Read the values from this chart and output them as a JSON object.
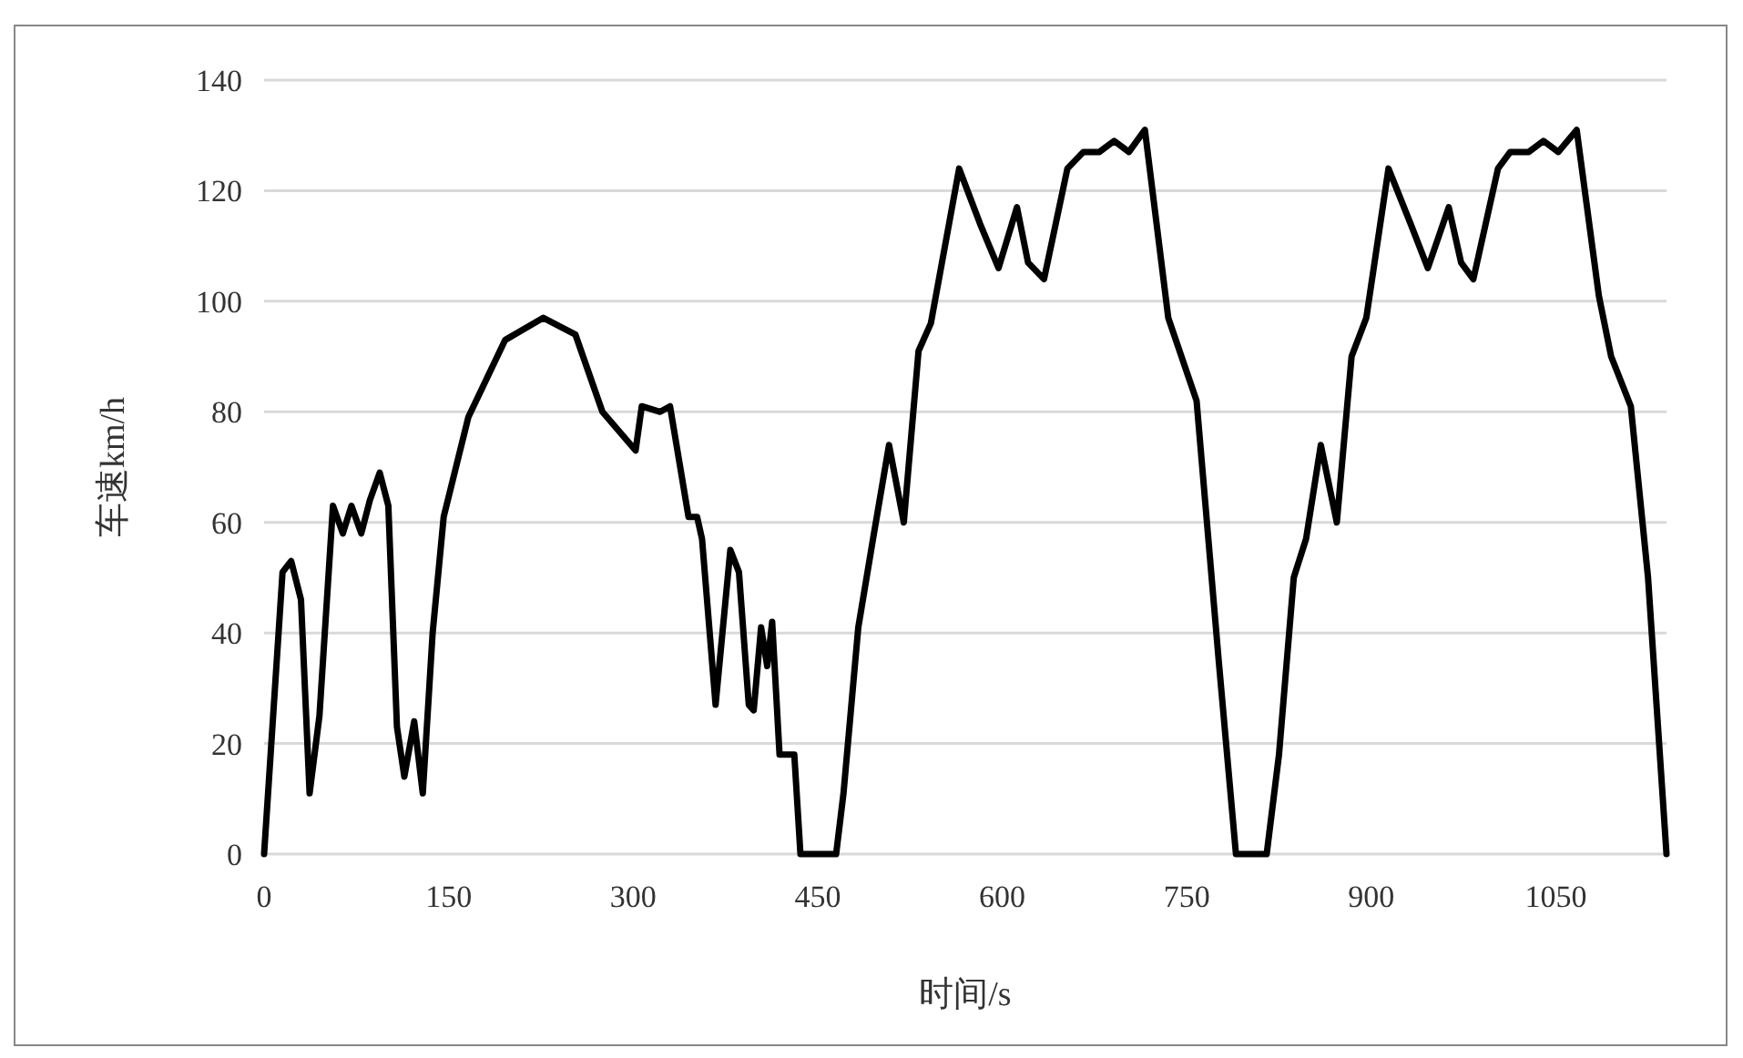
{
  "chart_data": {
    "type": "line",
    "xlabel": "时间/s",
    "ylabel": "车速km/h",
    "xlim": [
      0,
      1140
    ],
    "ylim": [
      0,
      140
    ],
    "xticks": [
      0,
      150,
      300,
      450,
      600,
      750,
      900,
      1050
    ],
    "yticks": [
      0,
      20,
      40,
      60,
      80,
      100,
      120,
      140
    ],
    "grid": "y",
    "series": [
      {
        "color": "#000000",
        "x": [
          0,
          15,
          22,
          30,
          37,
          45,
          56,
          64,
          71,
          79,
          86,
          94,
          101,
          108,
          114,
          122,
          129,
          137,
          146,
          166,
          196,
          227,
          253,
          275,
          302,
          307,
          322,
          330,
          345,
          352,
          356,
          367,
          379,
          386,
          394,
          398,
          404,
          409,
          413,
          419,
          431,
          436,
          465,
          471,
          483,
          495,
          508,
          520,
          532,
          542,
          565,
          582,
          597,
          612,
          621,
          634,
          653,
          666,
          679,
          691,
          703,
          716,
          735,
          758,
          776,
          790,
          815,
          825,
          837,
          847,
          859,
          872,
          884,
          896,
          914,
          932,
          946,
          963,
          973,
          983,
          1003,
          1013,
          1028,
          1040,
          1052,
          1067,
          1085,
          1095,
          1111,
          1125,
          1140
        ],
        "values": [
          0,
          51,
          53,
          46,
          11,
          25,
          63,
          58,
          63,
          58,
          64,
          69,
          63,
          23,
          14,
          24,
          11,
          40,
          61,
          79,
          93,
          97,
          94,
          80,
          73,
          81,
          80,
          81,
          61,
          61,
          57,
          27,
          55,
          51,
          27,
          26,
          41,
          34,
          42,
          18,
          18,
          0,
          0,
          11,
          41,
          57,
          74,
          60,
          91,
          96,
          124,
          114,
          106,
          117,
          107,
          104,
          124,
          127,
          127,
          129,
          127,
          131,
          97,
          82,
          35,
          0,
          0,
          18,
          50,
          57,
          74,
          60,
          90,
          97,
          124,
          114,
          106,
          117,
          107,
          104,
          124,
          127,
          127,
          129,
          127,
          131,
          101,
          90,
          81,
          50,
          0
        ]
      }
    ]
  }
}
